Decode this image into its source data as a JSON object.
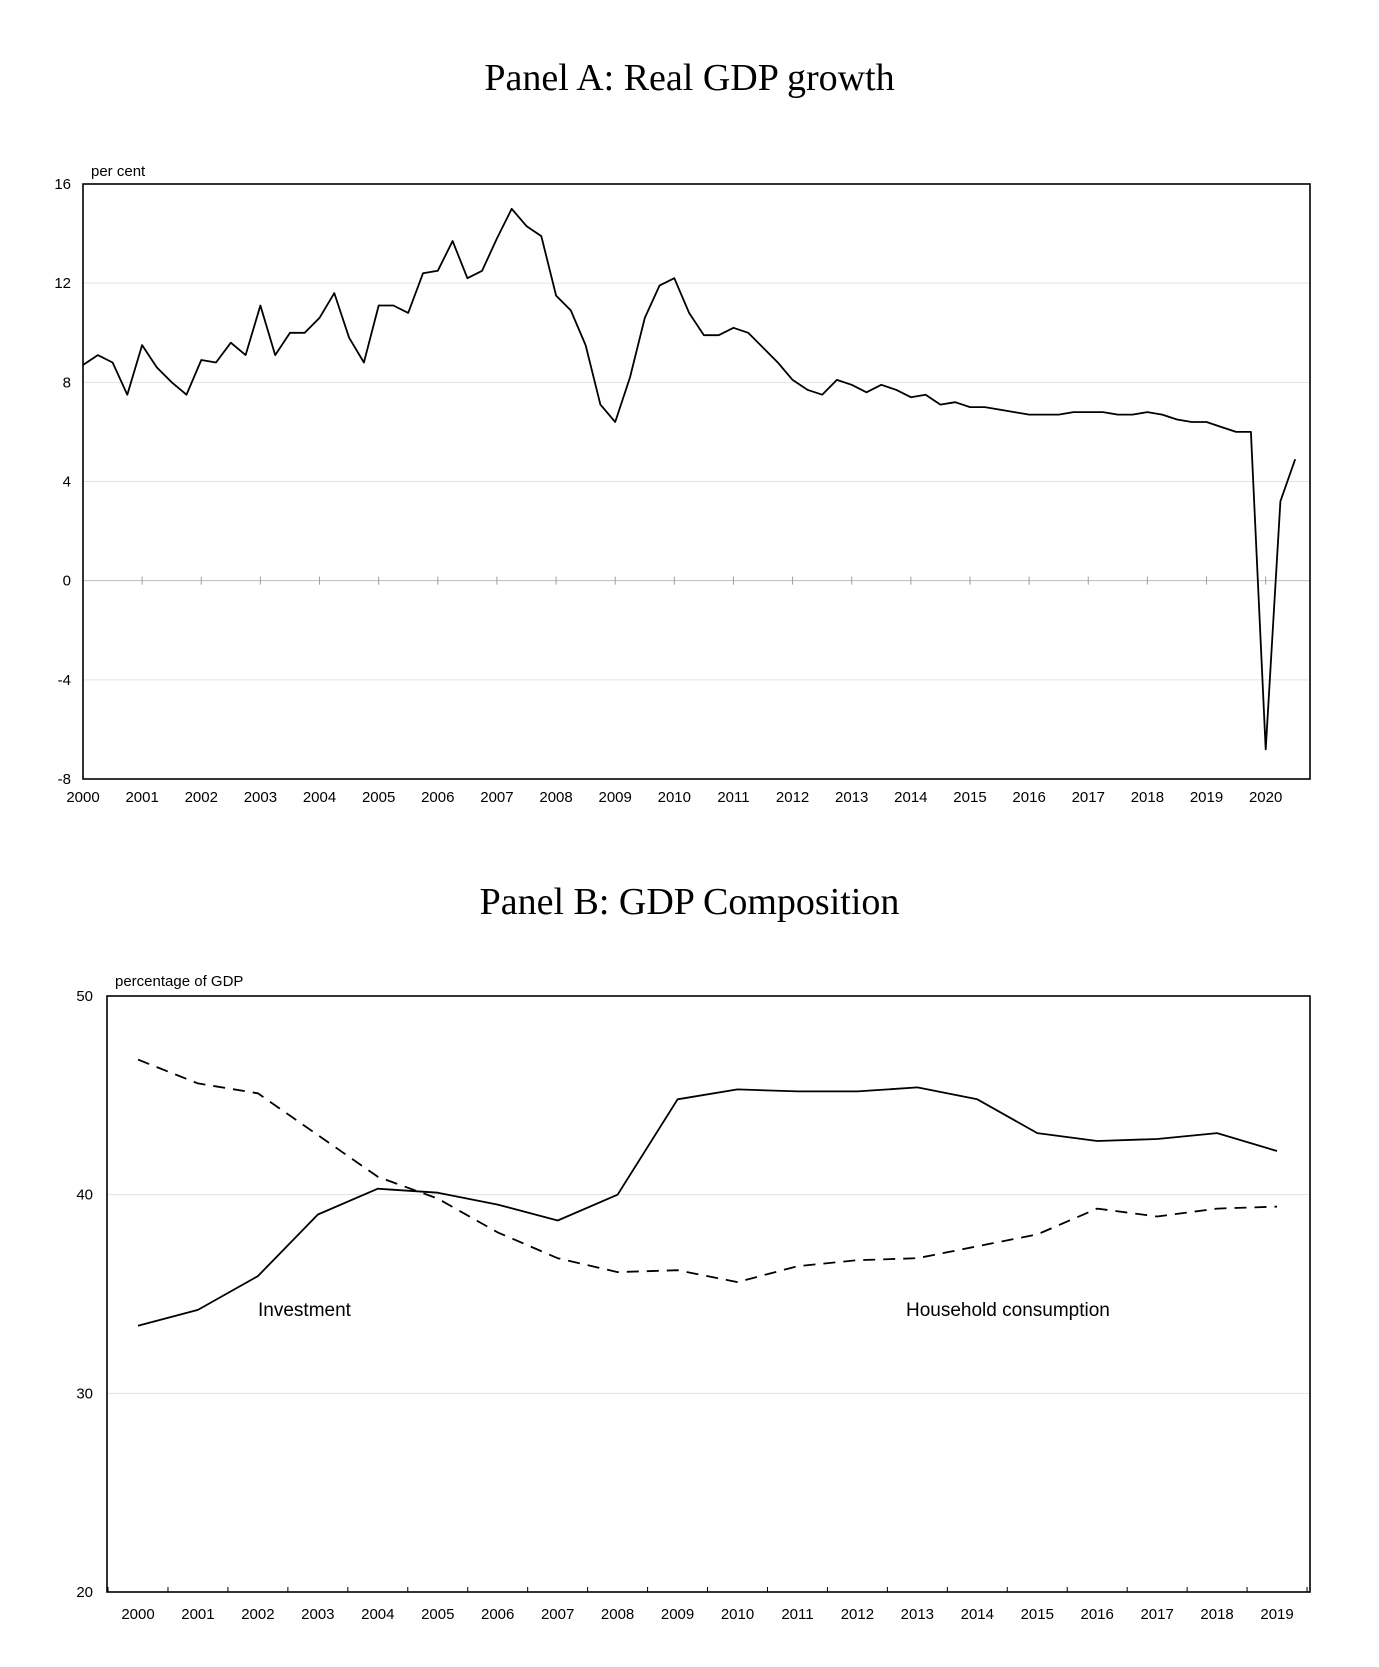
{
  "chart_data": [
    {
      "type": "line",
      "title": "Panel A: Real GDP growth",
      "ylabel": "per cent",
      "ylim": [
        -8,
        16
      ],
      "yticks": [
        16,
        12,
        8,
        4,
        0,
        -4,
        -8
      ],
      "xlim": [
        2000,
        2020.75
      ],
      "xticks": [
        "2000",
        "2001",
        "2002",
        "2003",
        "2004",
        "2005",
        "2006",
        "2007",
        "2008",
        "2009",
        "2010",
        "2011",
        "2012",
        "2013",
        "2014",
        "2015",
        "2016",
        "2017",
        "2018",
        "2019",
        "2020"
      ],
      "grid": true,
      "series": [
        {
          "x": [
            2000.0,
            2000.25,
            2000.5,
            2000.75,
            2001.0,
            2001.25,
            2001.5,
            2001.75,
            2002.0,
            2002.25,
            2002.5,
            2002.75,
            2003.0,
            2003.25,
            2003.5,
            2003.75,
            2004.0,
            2004.25,
            2004.5,
            2004.75,
            2005.0,
            2005.25,
            2005.5,
            2005.75,
            2006.0,
            2006.25,
            2006.5,
            2006.75,
            2007.0,
            2007.25,
            2007.5,
            2007.75,
            2008.0,
            2008.25,
            2008.5,
            2008.75,
            2009.0,
            2009.25,
            2009.5,
            2009.75,
            2010.0,
            2010.25,
            2010.5,
            2010.75,
            2011.0,
            2011.25,
            2011.5,
            2011.75,
            2012.0,
            2012.25,
            2012.5,
            2012.75,
            2013.0,
            2013.25,
            2013.5,
            2013.75,
            2014.0,
            2014.25,
            2014.5,
            2014.75,
            2015.0,
            2015.25,
            2015.5,
            2015.75,
            2016.0,
            2016.25,
            2016.5,
            2016.75,
            2017.0,
            2017.25,
            2017.5,
            2017.75,
            2018.0,
            2018.25,
            2018.5,
            2018.75,
            2019.0,
            2019.25,
            2019.5,
            2019.75,
            2020.0,
            2020.25,
            2020.5
          ],
          "values": [
            8.7,
            9.1,
            8.8,
            7.5,
            9.5,
            8.6,
            8.0,
            7.5,
            8.9,
            8.8,
            9.6,
            9.1,
            11.1,
            9.1,
            10.0,
            10.0,
            10.6,
            11.6,
            9.8,
            8.8,
            11.1,
            11.1,
            10.8,
            12.4,
            12.5,
            13.7,
            12.2,
            12.5,
            13.8,
            15.0,
            14.3,
            13.9,
            11.5,
            10.9,
            9.5,
            7.1,
            6.4,
            8.2,
            10.6,
            11.9,
            12.2,
            10.8,
            9.9,
            9.9,
            10.2,
            10.0,
            9.4,
            8.8,
            8.1,
            7.7,
            7.5,
            8.1,
            7.9,
            7.6,
            7.9,
            7.7,
            7.4,
            7.5,
            7.1,
            7.2,
            7.0,
            7.0,
            6.9,
            6.8,
            6.7,
            6.7,
            6.7,
            6.8,
            6.8,
            6.8,
            6.7,
            6.7,
            6.8,
            6.7,
            6.5,
            6.4,
            6.4,
            6.2,
            6.0,
            6.0,
            -6.8,
            3.2,
            4.9
          ]
        }
      ]
    },
    {
      "type": "line",
      "title": "Panel B: GDP Composition",
      "ylabel": "percentage of GDP",
      "ylim": [
        20,
        50
      ],
      "yticks": [
        50,
        40,
        30,
        20
      ],
      "categories": [
        "2000",
        "2001",
        "2002",
        "2003",
        "2004",
        "2005",
        "2006",
        "2007",
        "2008",
        "2009",
        "2010",
        "2011",
        "2012",
        "2013",
        "2014",
        "2015",
        "2016",
        "2017",
        "2018",
        "2019"
      ],
      "grid": true,
      "series": [
        {
          "name": "Investment",
          "style": "solid",
          "values": [
            33.4,
            34.2,
            35.9,
            39.0,
            40.3,
            40.1,
            39.5,
            38.7,
            40.0,
            44.8,
            45.3,
            45.2,
            45.2,
            45.4,
            44.8,
            43.1,
            42.7,
            42.8,
            43.1,
            42.2
          ]
        },
        {
          "name": "Household consumption",
          "style": "dashed",
          "values": [
            46.8,
            45.6,
            45.1,
            43.0,
            40.9,
            39.8,
            38.1,
            36.8,
            36.1,
            36.2,
            35.6,
            36.4,
            36.7,
            36.8,
            37.4,
            38.0,
            39.3,
            38.9,
            39.3,
            39.4
          ]
        }
      ]
    }
  ]
}
